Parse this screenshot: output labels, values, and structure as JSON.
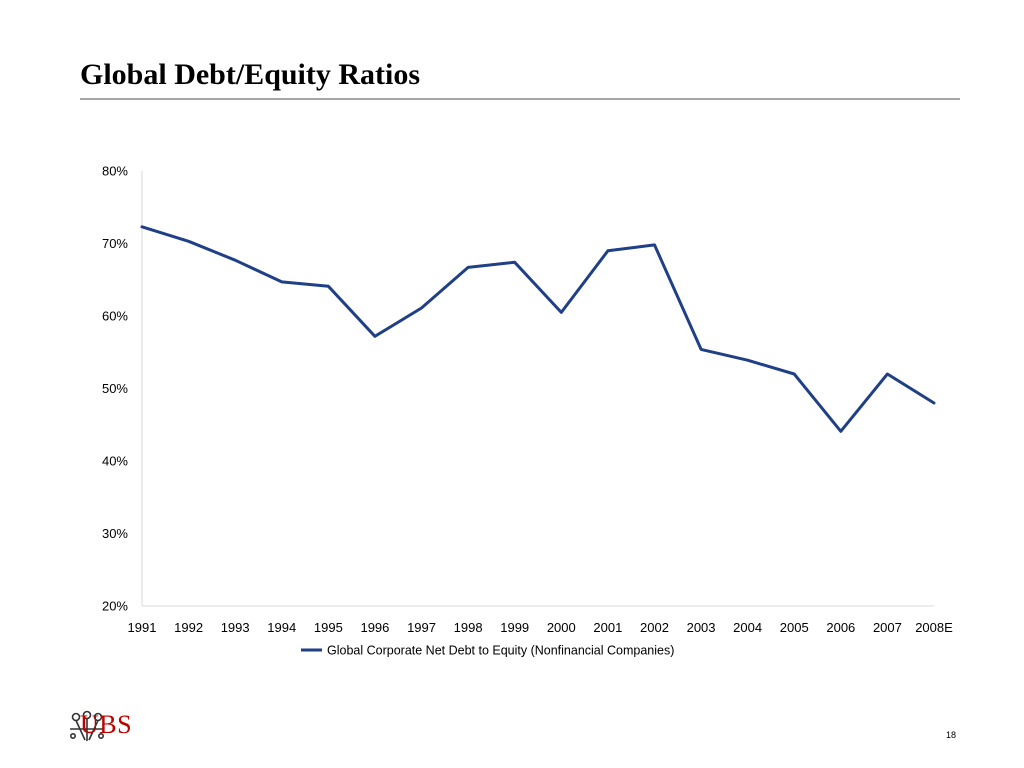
{
  "slide": {
    "title": "Global Debt/Equity Ratios",
    "page_number": "18",
    "logo_text": "UBS"
  },
  "colors": {
    "series_line": "#1f3f86",
    "axis": "#d9d9d9",
    "title_rule": "#a6a6a6",
    "logo_red": "#c00000"
  },
  "chart_data": {
    "type": "line",
    "title": "",
    "xlabel": "",
    "ylabel": "",
    "categories": [
      "1991",
      "1992",
      "1993",
      "1994",
      "1995",
      "1996",
      "1997",
      "1998",
      "1999",
      "2000",
      "2001",
      "2002",
      "2003",
      "2004",
      "2005",
      "2006",
      "2007",
      "2008E"
    ],
    "y_ticks": [
      "80%",
      "70%",
      "60%",
      "50%",
      "40%",
      "30%",
      "20%"
    ],
    "y_tick_values": [
      80,
      70,
      60,
      50,
      40,
      30,
      20
    ],
    "ylim": [
      20,
      80
    ],
    "y_unit": "%",
    "grid": false,
    "legend_position": "bottom",
    "series": [
      {
        "name": "Global Corporate Net Debt to Equity (Nonfinancial Companies)",
        "values": [
          72.3,
          70.3,
          67.7,
          64.7,
          64.1,
          57.2,
          61.1,
          66.7,
          67.4,
          60.5,
          69.0,
          69.8,
          55.4,
          53.9,
          52.0,
          44.1,
          52.0,
          48.0
        ]
      }
    ]
  }
}
